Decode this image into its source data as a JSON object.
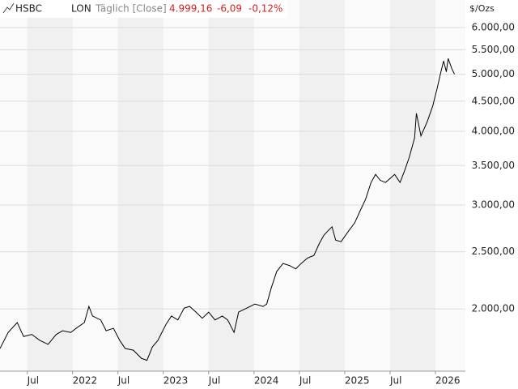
{
  "chart_data": {
    "type": "line",
    "title": "HSBC",
    "exchange": "LON",
    "interval": "Täglich [Close]",
    "last": "4.999,16",
    "change": "-6,09",
    "change_pct": "-0,12%",
    "y_unit": "$/Ozs",
    "yscale": "log",
    "grid": true,
    "color": "#000000",
    "xlim": [
      2021.2,
      2026.33
    ],
    "ylim": [
      1568,
      6681
    ],
    "xticks": [
      {
        "value": 2021.5,
        "label": "Jul"
      },
      2022,
      {
        "value": 2022.5,
        "label": "Jul"
      },
      2023,
      {
        "value": 2023.5,
        "label": "Jul"
      },
      2024,
      {
        "value": 2024.5,
        "label": "Jul"
      },
      2025,
      {
        "value": 2025.5,
        "label": "Jul"
      },
      2026
    ],
    "yticks": [
      {
        "value": 2000,
        "label": "2.000,00"
      },
      {
        "value": 2500,
        "label": "2.500,00"
      },
      {
        "value": 3000,
        "label": "3.000,00"
      },
      {
        "value": 3500,
        "label": "3.500,00"
      },
      {
        "value": 4000,
        "label": "4.000,00"
      },
      {
        "value": 4500,
        "label": "4.500,00"
      },
      {
        "value": 5000,
        "label": "5.000,00"
      },
      {
        "value": 5500,
        "label": "5.500,00"
      },
      {
        "value": 6000,
        "label": "6.000,00"
      }
    ],
    "x": [
      2021.2,
      2021.29,
      2021.39,
      2021.46,
      2021.55,
      2021.64,
      2021.73,
      2021.82,
      2021.89,
      2021.98,
      2022.04,
      2022.13,
      2022.18,
      2022.22,
      2022.31,
      2022.37,
      2022.45,
      2022.52,
      2022.58,
      2022.67,
      2022.76,
      2022.82,
      2022.88,
      2022.94,
      2023.03,
      2023.09,
      2023.16,
      2023.23,
      2023.29,
      2023.36,
      2023.43,
      2023.5,
      2023.57,
      2023.65,
      2023.71,
      2023.78,
      2023.83,
      2023.92,
      2024.01,
      2024.1,
      2024.14,
      2024.19,
      2024.25,
      2024.32,
      2024.39,
      2024.46,
      2024.52,
      2024.59,
      2024.66,
      2024.72,
      2024.77,
      2024.81,
      2024.86,
      2024.9,
      2024.96,
      2025.04,
      2025.11,
      2025.17,
      2025.23,
      2025.29,
      2025.34,
      2025.39,
      2025.45,
      2025.5,
      2025.55,
      2025.61,
      2025.66,
      2025.71,
      2025.77,
      2025.79,
      2025.84,
      2025.91,
      2025.97,
      2026.02,
      2026.06,
      2026.09,
      2026.12,
      2026.14,
      2026.18,
      2026.21
    ],
    "values": [
      1713,
      1824,
      1896,
      1795,
      1810,
      1768,
      1741,
      1810,
      1836,
      1824,
      1854,
      1896,
      2019,
      1945,
      1915,
      1836,
      1854,
      1768,
      1713,
      1702,
      1648,
      1636,
      1724,
      1768,
      1883,
      1945,
      1915,
      2006,
      2019,
      1975,
      1928,
      1975,
      1915,
      1945,
      1915,
      1824,
      1975,
      2006,
      2038,
      2019,
      2038,
      2170,
      2314,
      2388,
      2369,
      2338,
      2388,
      2439,
      2464,
      2582,
      2666,
      2707,
      2756,
      2615,
      2600,
      2707,
      2799,
      2933,
      3069,
      3276,
      3381,
      3305,
      3276,
      3328,
      3381,
      3276,
      3431,
      3610,
      3898,
      4292,
      3929,
      4157,
      4416,
      4741,
      5047,
      5266,
      5047,
      5316,
      5110,
      5000
    ]
  }
}
